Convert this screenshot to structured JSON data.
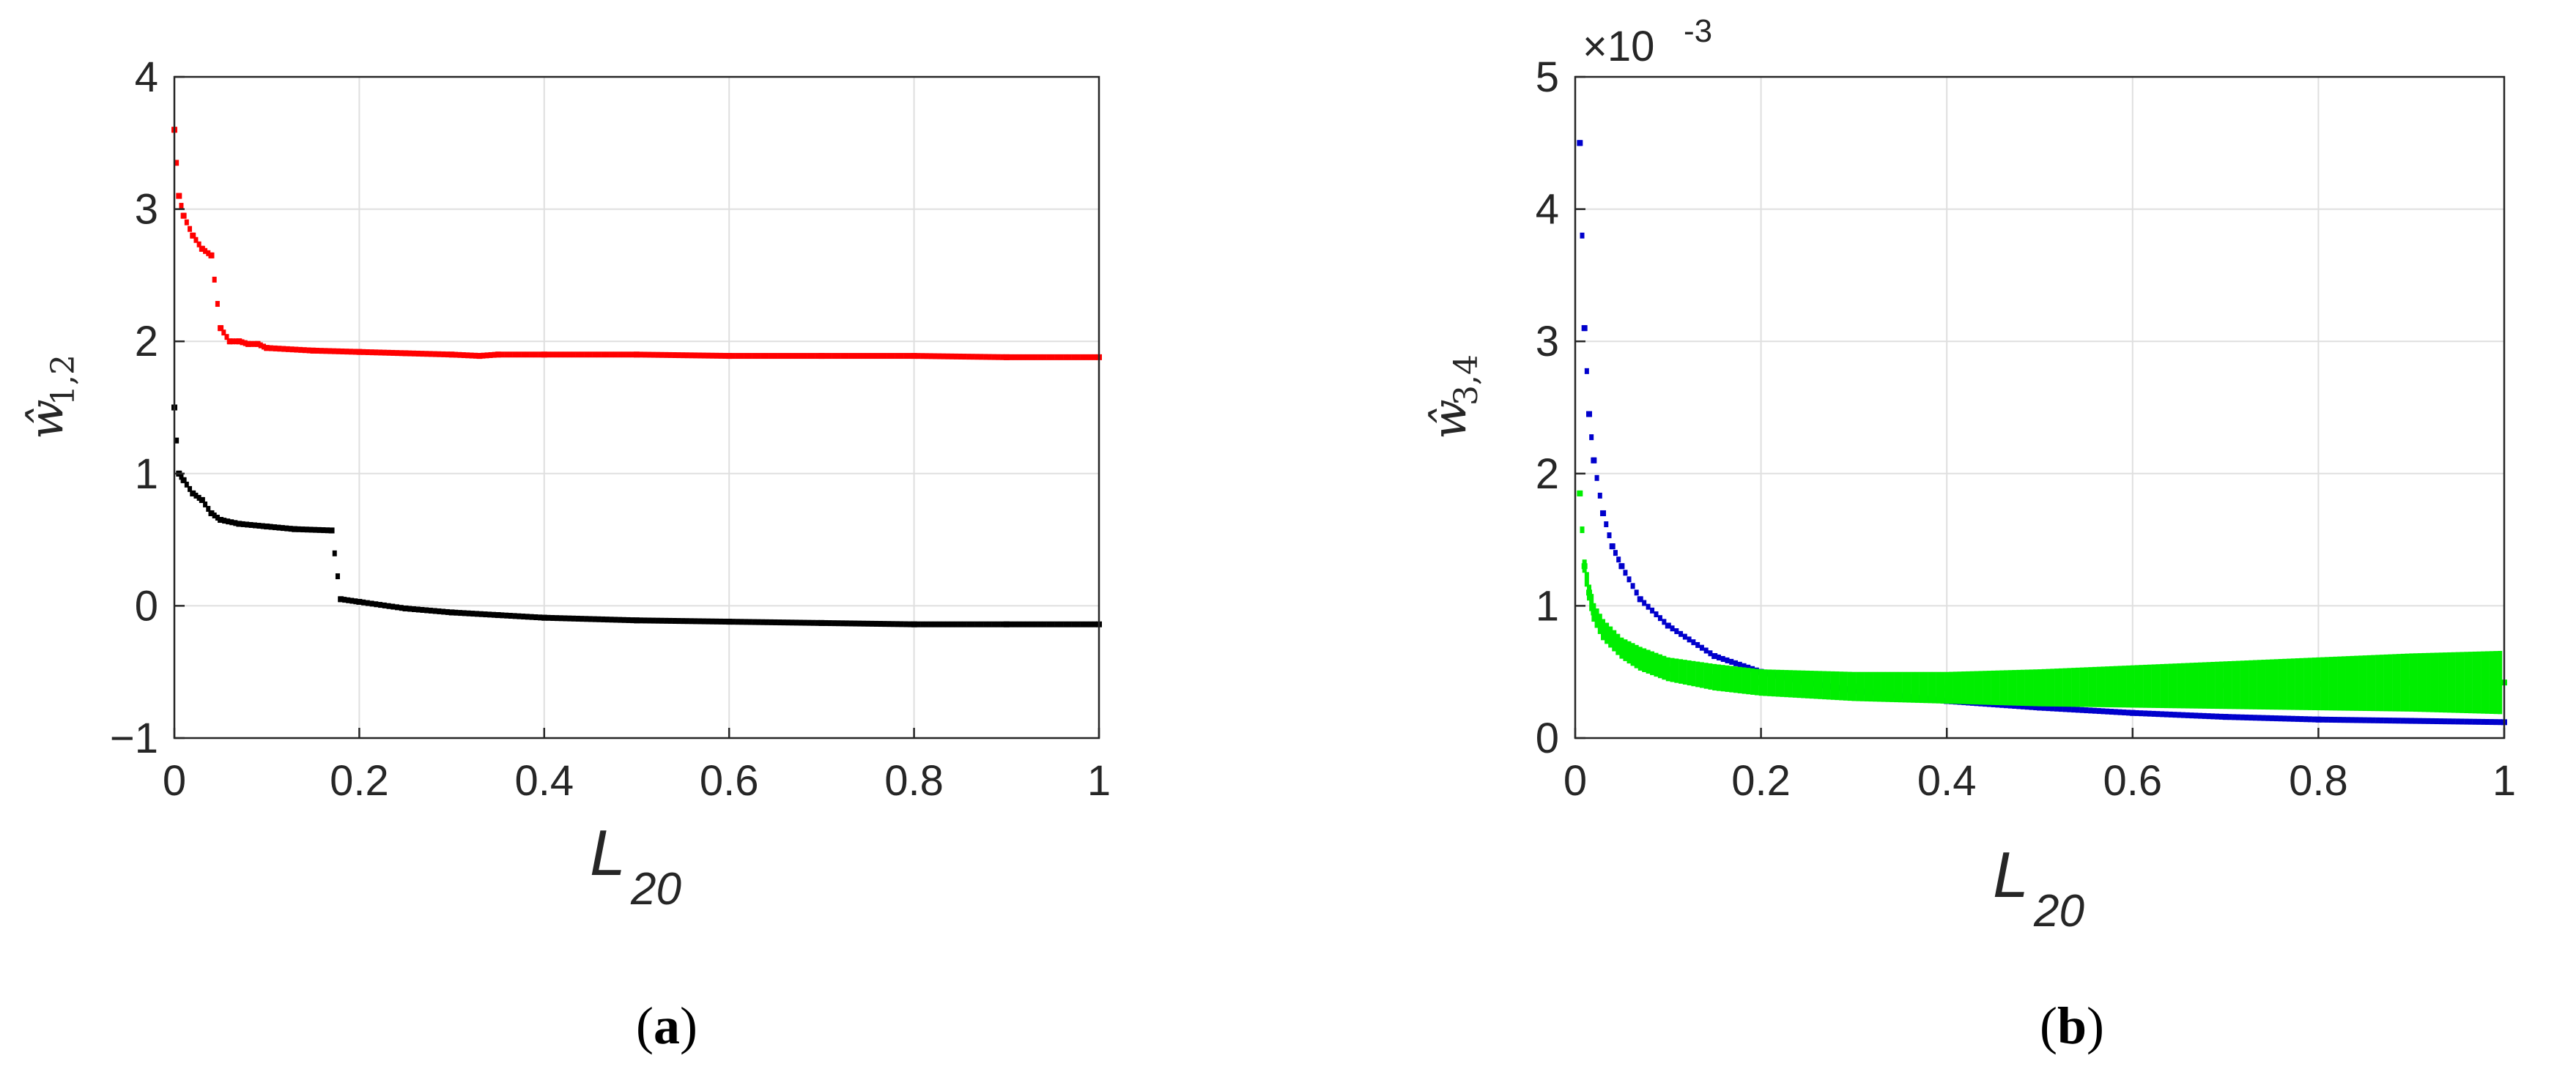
{
  "chart_data": [
    {
      "type": "scatter",
      "caption": "a",
      "xlabel_main": "L",
      "xlabel_sub": "20",
      "ylabel_main": "ŵ",
      "ylabel_sub": "1,2",
      "xlim": [
        0,
        1
      ],
      "ylim": [
        -1,
        4
      ],
      "xticks": [
        0,
        0.2,
        0.4,
        0.6,
        0.8,
        1
      ],
      "xtick_labels": [
        "0",
        "0.2",
        "0.4",
        "0.6",
        "0.8",
        "1"
      ],
      "yticks": [
        -1,
        0,
        1,
        2,
        3,
        4
      ],
      "ytick_labels": [
        "−1",
        "0",
        "1",
        "2",
        "3",
        "4"
      ],
      "grid": true,
      "series": [
        {
          "color": "#ff0000",
          "x": [
            0.0,
            0.005,
            0.01,
            0.02,
            0.03,
            0.04,
            0.05,
            0.06,
            0.07,
            0.08,
            0.09,
            0.1,
            0.15,
            0.2,
            0.25,
            0.3,
            0.33,
            0.35,
            0.4,
            0.5,
            0.6,
            0.7,
            0.8,
            0.9,
            1.0
          ],
          "y": [
            3.6,
            3.1,
            2.95,
            2.8,
            2.7,
            2.65,
            2.1,
            2.0,
            2.0,
            1.98,
            1.98,
            1.95,
            1.93,
            1.92,
            1.91,
            1.9,
            1.89,
            1.9,
            1.9,
            1.9,
            1.89,
            1.89,
            1.89,
            1.88,
            1.88
          ]
        },
        {
          "color": "#000000",
          "x": [
            0.0,
            0.005,
            0.01,
            0.02,
            0.03,
            0.04,
            0.05,
            0.07,
            0.1,
            0.13,
            0.17,
            0.18,
            0.2,
            0.25,
            0.3,
            0.35,
            0.4,
            0.5,
            0.6,
            0.7,
            0.8,
            0.9,
            1.0
          ],
          "y": [
            1.5,
            1.0,
            0.95,
            0.85,
            0.8,
            0.7,
            0.65,
            0.62,
            0.6,
            0.58,
            0.57,
            0.05,
            0.03,
            -0.02,
            -0.05,
            -0.07,
            -0.09,
            -0.11,
            -0.12,
            -0.13,
            -0.14,
            -0.14,
            -0.14
          ]
        }
      ]
    },
    {
      "type": "scatter",
      "caption": "b",
      "xlabel_main": "L",
      "xlabel_sub": "20",
      "ylabel_main": "ŵ",
      "ylabel_sub": "3,4",
      "exponent_base": "×10",
      "exponent_power": "-3",
      "xlim": [
        0,
        1
      ],
      "ylim": [
        0,
        5
      ],
      "xticks": [
        0,
        0.2,
        0.4,
        0.6,
        0.8,
        1
      ],
      "xtick_labels": [
        "0",
        "0.2",
        "0.4",
        "0.6",
        "0.8",
        "1"
      ],
      "yticks": [
        0,
        1,
        2,
        3,
        4,
        5
      ],
      "ytick_labels": [
        "0",
        "1",
        "2",
        "3",
        "4",
        "5"
      ],
      "grid": true,
      "series": [
        {
          "color": "#0000cc",
          "x": [
            0.005,
            0.01,
            0.015,
            0.02,
            0.03,
            0.04,
            0.05,
            0.07,
            0.1,
            0.15,
            0.2,
            0.25,
            0.3,
            0.4,
            0.5,
            0.6,
            0.7,
            0.8,
            0.9,
            1.0
          ],
          "y": [
            4.5,
            3.1,
            2.45,
            2.1,
            1.7,
            1.45,
            1.3,
            1.05,
            0.85,
            0.62,
            0.5,
            0.42,
            0.36,
            0.28,
            0.23,
            0.19,
            0.16,
            0.14,
            0.13,
            0.12
          ]
        },
        {
          "color": "#00ee00",
          "x": [
            0.005,
            0.01,
            0.015,
            0.02,
            0.03,
            0.05,
            0.07,
            0.1,
            0.15,
            0.2,
            0.3,
            0.4,
            0.5,
            0.6,
            0.7,
            0.8,
            0.9,
            1.0
          ],
          "y": [
            1.85,
            1.3,
            1.1,
            0.95,
            0.82,
            0.68,
            0.6,
            0.52,
            0.46,
            0.42,
            0.39,
            0.38,
            0.38,
            0.39,
            0.4,
            0.41,
            0.42,
            0.42
          ],
          "band": [
            0.0,
            0.05,
            0.06,
            0.07,
            0.08,
            0.08,
            0.09,
            0.09,
            0.1,
            0.1,
            0.11,
            0.12,
            0.14,
            0.16,
            0.18,
            0.2,
            0.22,
            0.24
          ]
        }
      ]
    }
  ]
}
